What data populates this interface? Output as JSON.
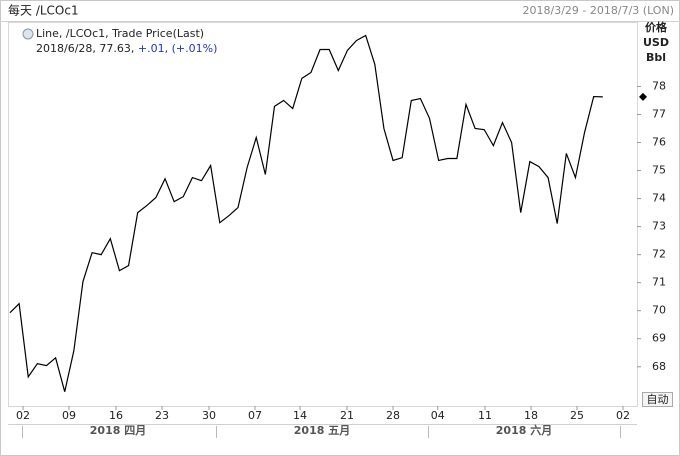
{
  "chart_data": {
    "type": "line",
    "title": "每天 /LCOc1",
    "date_range": "2018/3/29 - 2018/7/3 (LON)",
    "legend": {
      "series_label": "Line, /LCOc1, Trade Price(Last)",
      "date": "2018/6/28,",
      "last": "77.63,",
      "change": "+.01,",
      "change_pct": "(+.01%)"
    },
    "y_axis_label": [
      "价格",
      "USD",
      "Bbl"
    ],
    "months": [
      "2018 四月",
      "2018 五月",
      "2018 六月"
    ],
    "button": "自动",
    "series": [
      {
        "name": "/LCOc1",
        "color": "#000000",
        "values": [
          69.93,
          70.25,
          67.64,
          68.11,
          68.04,
          68.32,
          67.11,
          68.57,
          71.04,
          72.07,
          72.0,
          72.57,
          71.43,
          71.61,
          73.5,
          73.75,
          74.04,
          74.71,
          73.89,
          74.07,
          74.75,
          74.64,
          75.18,
          73.14,
          73.39,
          73.68,
          75.11,
          76.18,
          74.86,
          77.29,
          77.5,
          77.21,
          78.29,
          78.5,
          79.32,
          79.32,
          78.57,
          79.29,
          79.64,
          79.82,
          78.79,
          76.5,
          75.36,
          75.46,
          77.5,
          77.57,
          76.86,
          75.36,
          75.43,
          75.43,
          77.36,
          76.5,
          76.46,
          75.89,
          76.71,
          76.0,
          73.5,
          75.32,
          75.14,
          74.75,
          73.11,
          75.61,
          74.75,
          76.36,
          77.64,
          77.63
        ]
      }
    ],
    "xlim": [
      0,
      68.75
    ],
    "xticks": [
      {
        "value": 1.43,
        "label": "02"
      },
      {
        "value": 6.47,
        "label": "09"
      },
      {
        "value": 11.62,
        "label": "16"
      },
      {
        "value": 16.67,
        "label": "23"
      },
      {
        "value": 21.82,
        "label": "30"
      },
      {
        "value": 26.86,
        "label": "07"
      },
      {
        "value": 31.8,
        "label": "14"
      },
      {
        "value": 36.95,
        "label": "21"
      },
      {
        "value": 42.0,
        "label": "28"
      },
      {
        "value": 46.9,
        "label": "04"
      },
      {
        "value": 52.08,
        "label": "11"
      },
      {
        "value": 57.13,
        "label": "18"
      },
      {
        "value": 62.17,
        "label": "25"
      },
      {
        "value": 67.21,
        "label": "02"
      }
    ],
    "ylim": [
      66.6,
      80.3
    ],
    "yticks": [
      68,
      69,
      70,
      71,
      72,
      73,
      74,
      75,
      76,
      77,
      78
    ],
    "grid": false
  }
}
